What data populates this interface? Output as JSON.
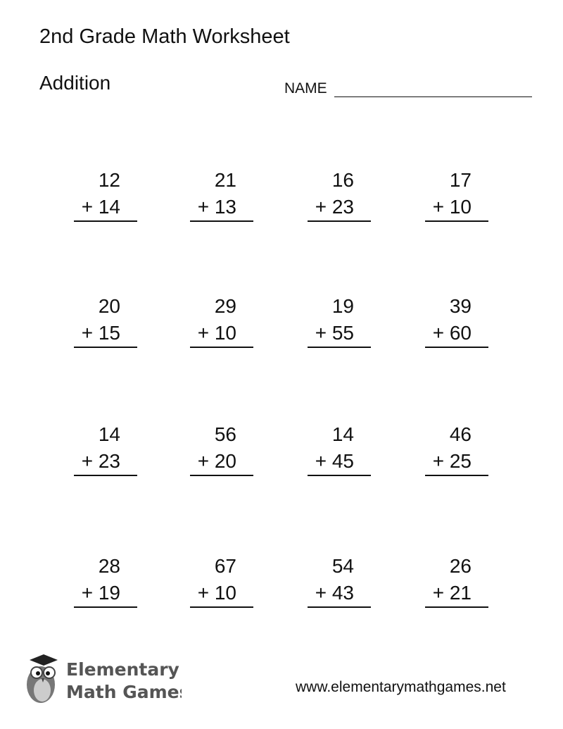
{
  "header": {
    "title": "2nd Grade Math Worksheet",
    "subtitle": "Addition",
    "name_label": "NAME"
  },
  "problems": [
    [
      {
        "a": "12",
        "b": "+ 14"
      },
      {
        "a": "21",
        "b": "+ 13"
      },
      {
        "a": "16",
        "b": "+ 23"
      },
      {
        "a": "17",
        "b": "+ 10"
      }
    ],
    [
      {
        "a": "20",
        "b": "+ 15"
      },
      {
        "a": "29",
        "b": "+ 10"
      },
      {
        "a": "19",
        "b": "+ 55"
      },
      {
        "a": "39",
        "b": "+ 60"
      }
    ],
    [
      {
        "a": "14",
        "b": "+ 23"
      },
      {
        "a": "56",
        "b": "+ 20"
      },
      {
        "a": "14",
        "b": "+ 45"
      },
      {
        "a": "46",
        "b": "+ 25"
      }
    ],
    [
      {
        "a": "28",
        "b": "+ 19"
      },
      {
        "a": "67",
        "b": "+ 10"
      },
      {
        "a": "54",
        "b": "+ 43"
      },
      {
        "a": "26",
        "b": "+ 21"
      }
    ]
  ],
  "footer": {
    "logo_line1": "Elementary",
    "logo_line2": "Math Games",
    "logo_icon": "owl-graduation-cap-icon",
    "url": "www.elementarymathgames.net"
  }
}
